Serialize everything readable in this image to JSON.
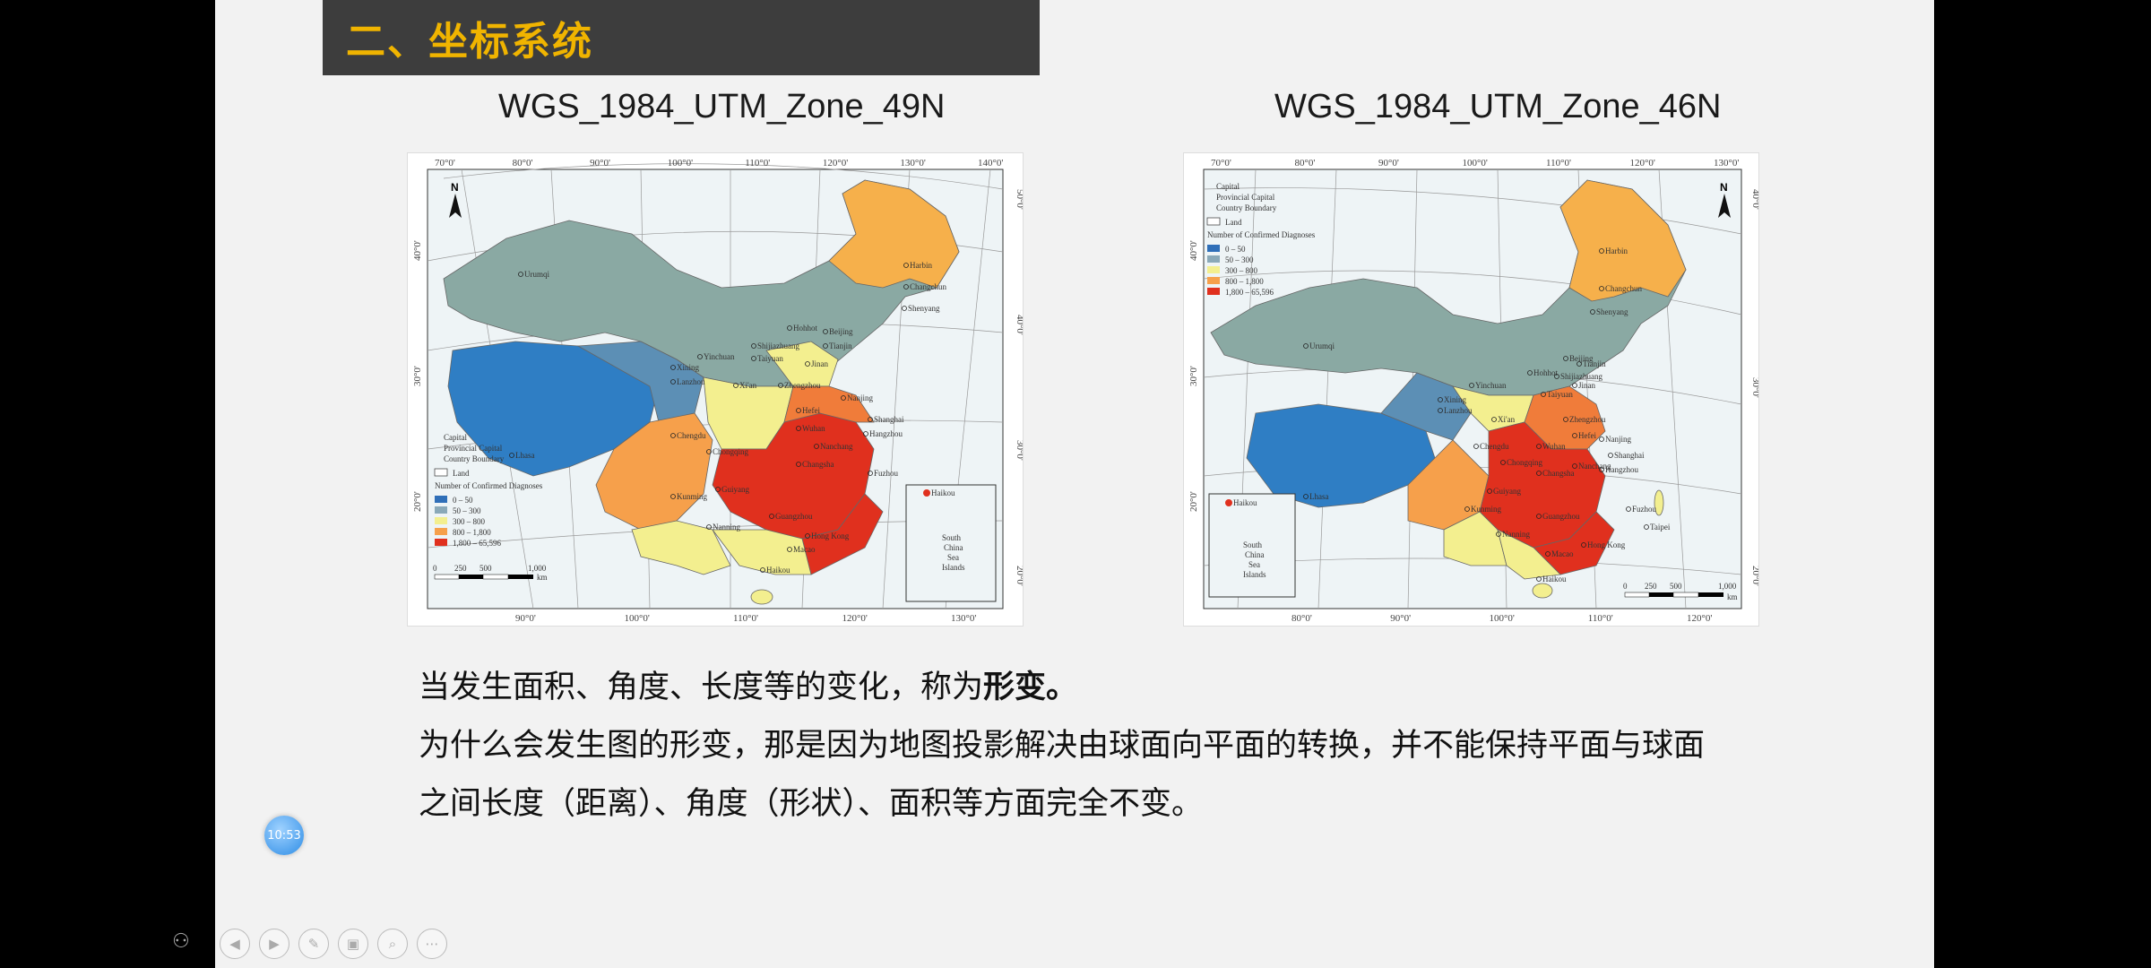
{
  "slide": {
    "title": "二、坐标系统",
    "left_map": {
      "caption": "WGS_1984_UTM_Zone_49N",
      "top_ticks": [
        "70°0'",
        "80°0'",
        "90°0'",
        "100°0'",
        "110°0'",
        "120°0'",
        "130°0'",
        "140°0'"
      ],
      "bottom_ticks": [
        "90°0'",
        "100°0'",
        "110°0'",
        "120°0'",
        "130°0'"
      ],
      "left_ticks": [
        "40°0'",
        "30°0'",
        "20°0'"
      ],
      "right_ticks": [
        "50°0'",
        "40°0'",
        "30°0'",
        "20°0'"
      ],
      "cities": [
        "Urumqi",
        "Harbin",
        "Changchun",
        "Shenyang",
        "Hohhot",
        "Beijing",
        "Yinchuan",
        "Shijiazhuang",
        "Tianjin",
        "Taiyuan",
        "Xining",
        "Lanzhou",
        "Jinan",
        "Xi'an",
        "Zhengzhou",
        "Nanjing",
        "Hefei",
        "Shanghai",
        "Hangzhou",
        "Chengdu",
        "Wuhan",
        "Chongqing",
        "Nanchang",
        "Changsha",
        "Fuzhou",
        "Guiyang",
        "Kunming",
        "Guangzhou",
        "Nanning",
        "Hong Kong",
        "Macao",
        "Lhasa",
        "Haikou"
      ]
    },
    "right_map": {
      "caption": "WGS_1984_UTM_Zone_46N",
      "top_ticks": [
        "70°0'",
        "80°0'",
        "90°0'",
        "100°0'",
        "110°0'",
        "120°0'",
        "130°0'"
      ],
      "bottom_ticks": [
        "80°0'",
        "90°0'",
        "100°0'",
        "110°0'",
        "120°0'"
      ],
      "left_ticks": [
        "40°0'",
        "30°0'",
        "20°0'"
      ],
      "right_ticks": [
        "40°0'",
        "30°0'",
        "20°0'"
      ],
      "cities": [
        "Urumqi",
        "Harbin",
        "Changchun",
        "Shenyang",
        "Hohhot",
        "Beijing",
        "Yinchuan",
        "Shijiazhuang",
        "Tianjin",
        "Taiyuan",
        "Xining",
        "Lanzhou",
        "Jinan",
        "Xi'an",
        "Zhengzhou",
        "Nanjing",
        "Hefei",
        "Shanghai",
        "Hangzhou",
        "Chengdu",
        "Wuhan",
        "Chongqing",
        "Nanchang",
        "Changsha",
        "Fuzhou",
        "Taipei",
        "Guiyang",
        "Kunming",
        "Guangzhou",
        "Nanning",
        "Hong Kong",
        "Macao",
        "Lhasa",
        "Haikou"
      ]
    },
    "legend": {
      "capital": "Capital",
      "provincial_capital": "Provincial Capital",
      "country_boundary": "Country Boundary",
      "land": "Land",
      "heading": "Number of Confirmed Diagnoses",
      "classes": [
        "0 – 50",
        "50 – 300",
        "300 – 800",
        "800 – 1,800",
        "1,800 – 65,596"
      ],
      "colors": [
        "#2f6fb8",
        "#8aa9b8",
        "#f3ef8f",
        "#f6a04b",
        "#e0301e"
      ],
      "scale": [
        "0",
        "250",
        "500",
        "1,000"
      ],
      "scale_unit": "km"
    },
    "inset": {
      "haikou": "Haikou",
      "label": [
        "South",
        "China",
        "Sea",
        "Islands"
      ]
    },
    "north_label": "N",
    "text_line1_prefix": "当发生面积、角度、长度等的变化，称为",
    "text_line1_bold": "形变。",
    "text_line2": "为什么会发生图的形变，那是因为地图投影解决由球面向平面的转换，并不能保持平面与球面",
    "text_line3": "之间长度（距离）、角度（形状）、面积等方面完全不变。"
  },
  "player": {
    "timestamp": "10:53",
    "controls": [
      "previous",
      "next",
      "pen",
      "slides",
      "zoom",
      "more"
    ]
  }
}
